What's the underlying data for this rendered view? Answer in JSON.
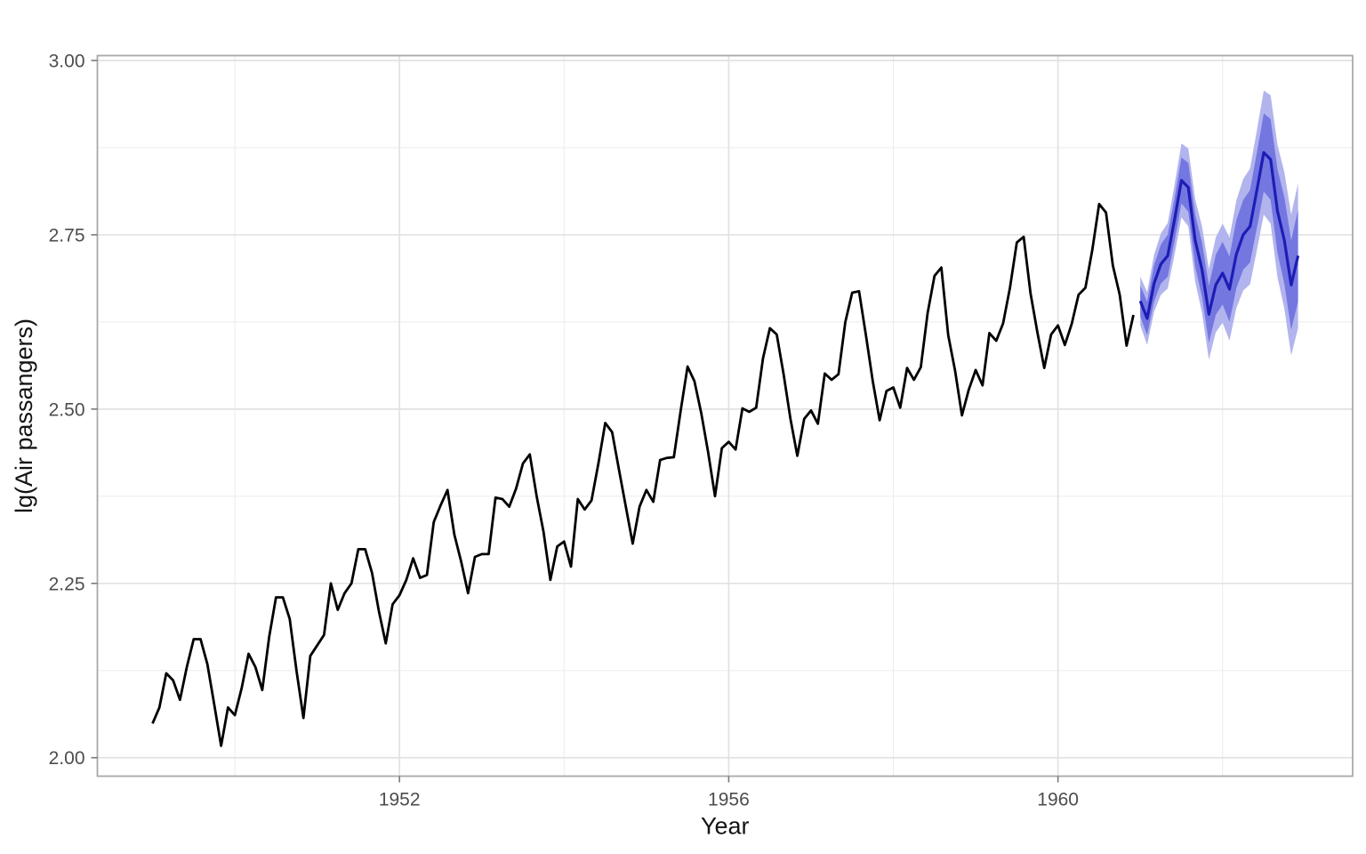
{
  "chart_data": {
    "type": "line",
    "title": "",
    "xlabel": "Year",
    "ylabel": "lg(Air passangers)",
    "xlim": [
      1948.33,
      1963.58
    ],
    "ylim": [
      1.9735,
      3.007
    ],
    "grid": true,
    "legend": "none",
    "x_axis": {
      "major_ticks": [
        1952,
        1956,
        1960
      ],
      "major_labels": [
        "1952",
        "1956",
        "1960"
      ],
      "minor_gridlines": [
        1950,
        1954,
        1958,
        1962
      ]
    },
    "y_axis": {
      "major_ticks": [
        2.0,
        2.25,
        2.5,
        2.75,
        3.0
      ],
      "major_labels": [
        "2.00",
        "2.25",
        "2.50",
        "2.75",
        "3.00"
      ],
      "minor_gridlines": [
        2.125,
        2.375,
        2.625,
        2.875
      ]
    },
    "colors": {
      "observed_line": "#000000",
      "forecast_line": "#1d1db5",
      "ribbon_80": "#7477e0",
      "ribbon_95": "#b2b4ee",
      "grid_major": "#e2e2e2",
      "grid_minor": "#ebebeb",
      "panel_border": "#a9a9a9",
      "tick": "#7a7a7a"
    },
    "series": [
      {
        "name": "observed",
        "color": "#000000",
        "x_start": 1949.0,
        "x_step": 0.0833333,
        "values": [
          2.049,
          2.072,
          2.121,
          2.111,
          2.083,
          2.13,
          2.17,
          2.17,
          2.134,
          2.076,
          2.017,
          2.072,
          2.061,
          2.1,
          2.149,
          2.13,
          2.097,
          2.173,
          2.23,
          2.23,
          2.199,
          2.124,
          2.057,
          2.146,
          2.161,
          2.176,
          2.25,
          2.212,
          2.236,
          2.25,
          2.299,
          2.299,
          2.265,
          2.21,
          2.164,
          2.22,
          2.233,
          2.255,
          2.286,
          2.258,
          2.262,
          2.338,
          2.362,
          2.384,
          2.32,
          2.281,
          2.236,
          2.288,
          2.292,
          2.292,
          2.373,
          2.371,
          2.36,
          2.386,
          2.422,
          2.435,
          2.375,
          2.324,
          2.255,
          2.303,
          2.31,
          2.274,
          2.371,
          2.356,
          2.369,
          2.422,
          2.48,
          2.467,
          2.413,
          2.36,
          2.307,
          2.36,
          2.384,
          2.367,
          2.427,
          2.43,
          2.431,
          2.498,
          2.561,
          2.54,
          2.494,
          2.438,
          2.375,
          2.444,
          2.453,
          2.442,
          2.501,
          2.496,
          2.502,
          2.573,
          2.616,
          2.607,
          2.55,
          2.486,
          2.433,
          2.486,
          2.498,
          2.479,
          2.551,
          2.542,
          2.55,
          2.625,
          2.667,
          2.669,
          2.606,
          2.54,
          2.484,
          2.526,
          2.531,
          2.502,
          2.559,
          2.542,
          2.56,
          2.638,
          2.691,
          2.703,
          2.606,
          2.555,
          2.491,
          2.528,
          2.556,
          2.534,
          2.609,
          2.598,
          2.623,
          2.674,
          2.739,
          2.747,
          2.666,
          2.61,
          2.559,
          2.607,
          2.62,
          2.592,
          2.622,
          2.664,
          2.674,
          2.728,
          2.794,
          2.782,
          2.706,
          2.664,
          2.591,
          2.635
        ]
      },
      {
        "name": "forecast-mean",
        "color": "#1d1db5",
        "x_start": 1961.0,
        "x_step": 0.0833333,
        "values": [
          2.655,
          2.63,
          2.68,
          2.708,
          2.72,
          2.772,
          2.828,
          2.818,
          2.742,
          2.7,
          2.636,
          2.678,
          2.695,
          2.672,
          2.722,
          2.75,
          2.762,
          2.814,
          2.868,
          2.858,
          2.784,
          2.742,
          2.678,
          2.72
        ]
      }
    ],
    "ribbons": [
      {
        "name": "ci-95",
        "color": "#b2b4ee",
        "x_start": 1961.0,
        "x_step": 0.0833333,
        "lower": [
          2.62,
          2.592,
          2.639,
          2.664,
          2.673,
          2.722,
          2.775,
          2.762,
          2.683,
          2.638,
          2.571,
          2.61,
          2.624,
          2.598,
          2.645,
          2.67,
          2.679,
          2.728,
          2.779,
          2.766,
          2.689,
          2.644,
          2.577,
          2.616
        ],
        "upper": [
          2.69,
          2.668,
          2.721,
          2.752,
          2.767,
          2.822,
          2.881,
          2.874,
          2.801,
          2.762,
          2.701,
          2.746,
          2.766,
          2.746,
          2.799,
          2.83,
          2.845,
          2.9,
          2.957,
          2.95,
          2.879,
          2.84,
          2.779,
          2.824
        ]
      },
      {
        "name": "ci-80",
        "color": "#7477e0",
        "x_start": 1961.0,
        "x_step": 0.0833333,
        "lower": [
          2.633,
          2.606,
          2.654,
          2.68,
          2.69,
          2.741,
          2.795,
          2.783,
          2.705,
          2.661,
          2.595,
          2.635,
          2.65,
          2.625,
          2.673,
          2.7,
          2.71,
          2.76,
          2.812,
          2.8,
          2.724,
          2.68,
          2.614,
          2.654
        ],
        "upper": [
          2.677,
          2.654,
          2.706,
          2.736,
          2.75,
          2.803,
          2.861,
          2.853,
          2.779,
          2.739,
          2.677,
          2.721,
          2.74,
          2.719,
          2.771,
          2.8,
          2.814,
          2.868,
          2.924,
          2.916,
          2.844,
          2.804,
          2.742,
          2.786
        ]
      }
    ]
  }
}
